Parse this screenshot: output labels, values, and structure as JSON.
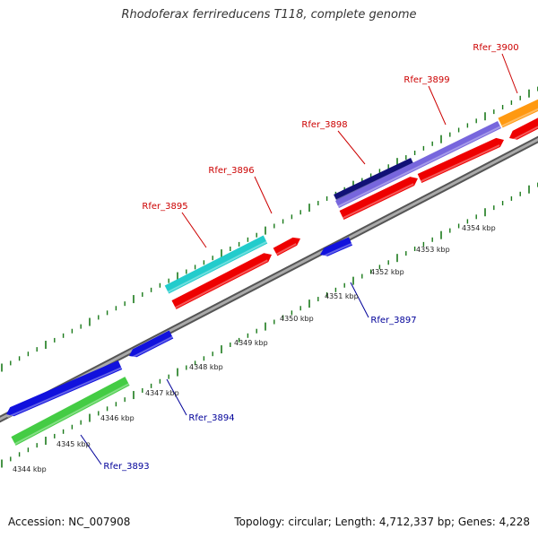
{
  "title": "Rhodoferax ferrireducens T118, complete genome",
  "footer": {
    "accession": "Accession: NC_007908",
    "stats": "Topology: circular; Length: 4,712,337 bp; Genes: 4,228"
  },
  "colors": {
    "backbone": "#888888",
    "tick": "#1a7a1a",
    "forward_label": "#cc0000",
    "reverse_label": "#000099",
    "kbp_text": "#222222"
  },
  "scale_labels": [
    "4344 kbp",
    "4345 kbp",
    "4346 kbp",
    "4347 kbp",
    "4348 kbp",
    "4349 kbp",
    "4350 kbp",
    "4351 kbp",
    "4352 kbp",
    "4353 kbp",
    "4354 kbp"
  ],
  "features": [
    {
      "id": "green-block",
      "color": "#44cc44"
    },
    {
      "id": "blue-long",
      "color": "#1111dd"
    },
    {
      "id": "blue-small-1",
      "color": "#1111dd"
    },
    {
      "id": "cyan-block",
      "color": "#22cccc"
    },
    {
      "id": "red-1",
      "color": "#ee0000"
    },
    {
      "id": "red-small",
      "color": "#ee0000"
    },
    {
      "id": "blue-small-2",
      "color": "#1111dd"
    },
    {
      "id": "navy-block",
      "color": "#111177"
    },
    {
      "id": "purple-block",
      "color": "#7766dd"
    },
    {
      "id": "red-2",
      "color": "#ee0000"
    },
    {
      "id": "red-3",
      "color": "#ee0000"
    },
    {
      "id": "orange-block",
      "color": "#ff9911"
    },
    {
      "id": "red-4",
      "color": "#ee0000"
    }
  ],
  "gene_labels": {
    "forward": [
      "Rfer_3895",
      "Rfer_3896",
      "Rfer_3898",
      "Rfer_3899",
      "Rfer_3900"
    ],
    "reverse": [
      "Rfer_3893",
      "Rfer_3894",
      "Rfer_3897"
    ]
  }
}
